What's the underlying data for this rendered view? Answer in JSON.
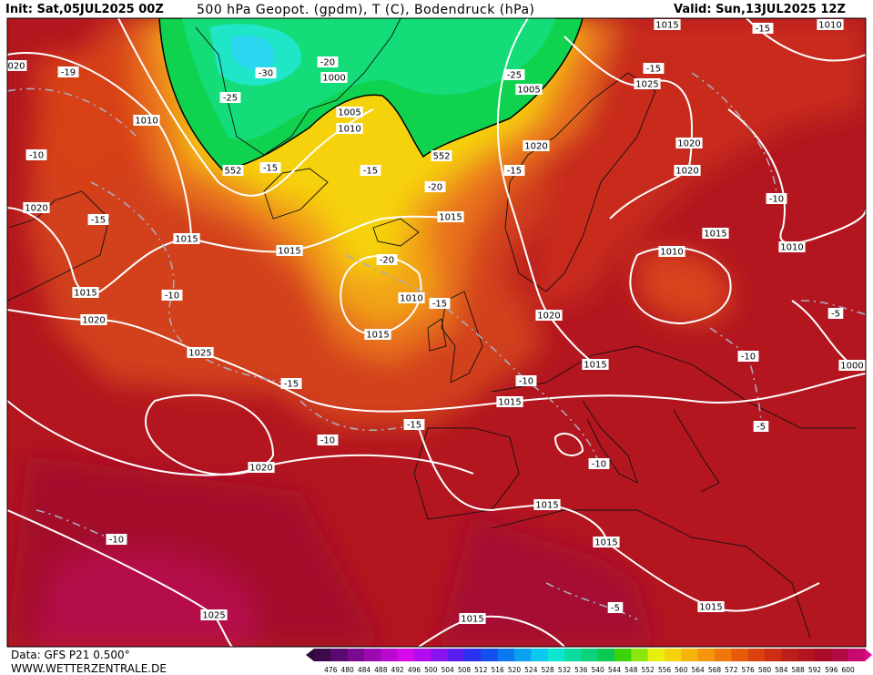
{
  "header": {
    "init": "Init: Sat,05JUL2025 00Z",
    "title": "500 hPa Geopot. (gpdm), T (C), Bodendruck (hPa)",
    "valid": "Valid: Sun,13JUL2025 12Z"
  },
  "footer": {
    "source": "Data: GFS P21 0.500°",
    "website": "WWW.WETTERZENTRALE.DE"
  },
  "map_labels": [
    "1015",
    "1010",
    "-15",
    "020",
    "-19",
    "-20",
    "-30",
    "-25",
    "1000",
    "1005",
    "-15",
    "1025",
    "-25",
    "1010",
    "1005",
    "1010",
    "1020",
    "1020",
    "552",
    "552",
    "-15",
    "-15",
    "-15",
    "1020",
    "-10",
    "-20",
    "-10",
    "1020",
    "-15",
    "1015",
    "1015",
    "1015",
    "1015",
    "1010",
    "1010",
    "-20",
    "1015",
    "-10",
    "1010",
    "-15",
    "1020",
    "-5",
    "1020",
    "1015",
    "1025",
    "-10",
    "1015",
    "1000",
    "-10",
    "-15",
    "1015",
    "-15",
    "-5",
    "-10",
    "-10",
    "1020",
    "1015",
    "1015",
    "-10",
    "-5",
    "1015",
    "1025",
    "1015"
  ],
  "colorbar": {
    "labels": [
      476,
      480,
      484,
      488,
      492,
      496,
      500,
      504,
      508,
      512,
      516,
      520,
      524,
      528,
      532,
      536,
      540,
      544,
      548,
      552,
      556,
      560,
      564,
      568,
      572,
      576,
      580,
      584,
      588,
      592,
      596,
      600
    ]
  }
}
